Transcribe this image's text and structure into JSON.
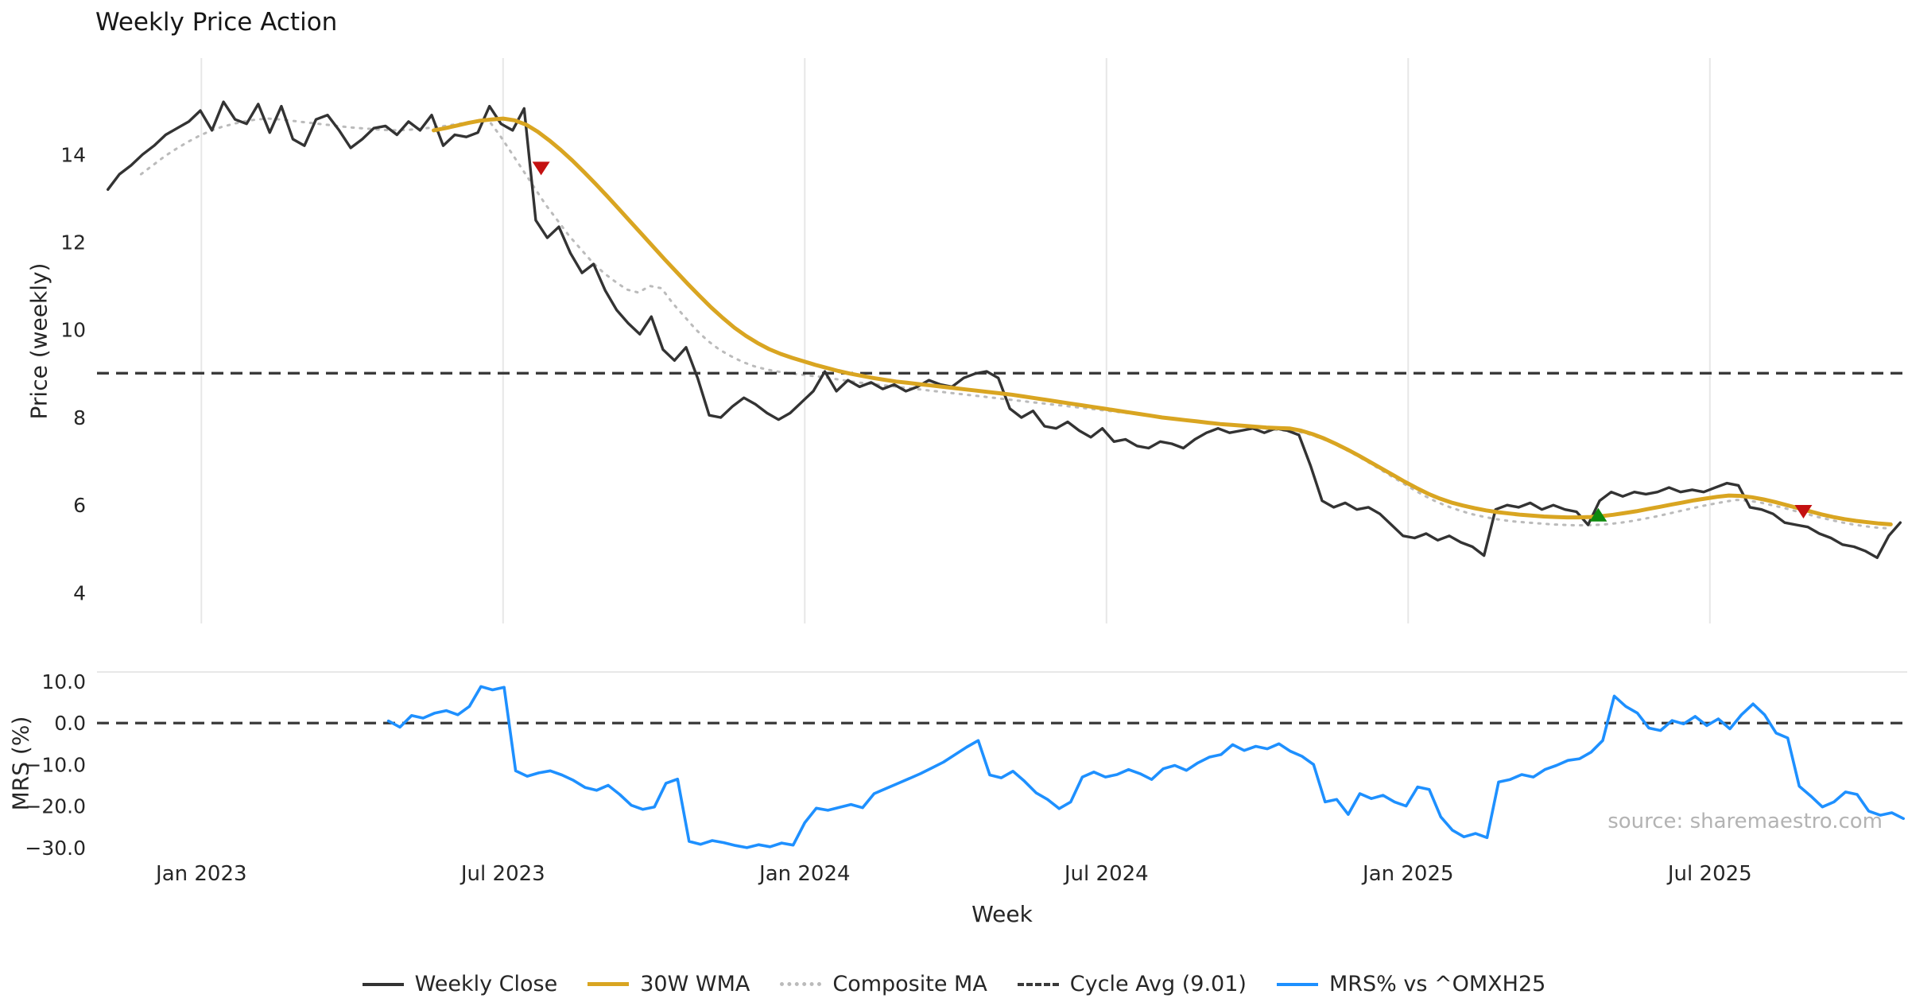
{
  "chart_data": {
    "type": "line",
    "title": "Weekly Price Action",
    "xlabel": "Week",
    "source": "source: sharemaestro.com",
    "x_axis": {
      "lim": [
        2022.827,
        2025.827
      ],
      "ticks": [
        {
          "v": 2023.0,
          "label": "Jan 2023"
        },
        {
          "v": 2023.5,
          "label": "Jul 2023"
        },
        {
          "v": 2024.0,
          "label": "Jan 2024"
        },
        {
          "v": 2024.5,
          "label": "Jul 2024"
        },
        {
          "v": 2025.0,
          "label": "Jan 2025"
        },
        {
          "v": 2025.5,
          "label": "Jul 2025"
        }
      ]
    },
    "panels": [
      {
        "id": "price",
        "ylabel": "Price (weekly)",
        "ylim": [
          3.3,
          16.2
        ],
        "yticks": [
          {
            "v": 4,
            "label": "4"
          },
          {
            "v": 6,
            "label": "6"
          },
          {
            "v": 8,
            "label": "8"
          },
          {
            "v": 10,
            "label": "10"
          },
          {
            "v": 12,
            "label": "12"
          },
          {
            "v": 14,
            "label": "14"
          }
        ],
        "grid_x": true
      },
      {
        "id": "mrs",
        "ylabel": "MRS (%)",
        "ylim": [
          -32.9,
          12.3
        ],
        "yticks": [
          {
            "v": 10,
            "label": "10.0"
          },
          {
            "v": 0,
            "label": "0.0"
          },
          {
            "v": -10,
            "label": "−10.0"
          },
          {
            "v": -20,
            "label": "−20.0"
          },
          {
            "v": -30,
            "label": "−30.0"
          }
        ],
        "grid_x": false
      }
    ],
    "series": [
      {
        "name": "Composite MA",
        "panel": "price",
        "color": "#bbbbbb",
        "width": 3,
        "dash": "2.5 8",
        "x_start": 2022.9,
        "x_step": 0.019165,
        "values": [
          13.55,
          13.75,
          13.95,
          14.12,
          14.28,
          14.42,
          14.54,
          14.63,
          14.7,
          14.76,
          14.8,
          14.82,
          14.8,
          14.77,
          14.74,
          14.71,
          14.68,
          14.65,
          14.62,
          14.6,
          14.58,
          14.56,
          14.55,
          14.56,
          14.58,
          14.61,
          14.64,
          14.68,
          14.72,
          14.76,
          14.8,
          14.45,
          14.05,
          13.65,
          13.25,
          12.85,
          12.5,
          12.15,
          11.85,
          11.55,
          11.3,
          11.1,
          10.92,
          10.85,
          11.0,
          10.95,
          10.6,
          10.3,
          10.0,
          9.75,
          9.55,
          9.4,
          9.27,
          9.17,
          9.1,
          9.05,
          9.01,
          8.98,
          8.95,
          8.92,
          8.88,
          8.84,
          8.8,
          8.77,
          8.74,
          8.71,
          8.68,
          8.65,
          8.62,
          8.59,
          8.56,
          8.53,
          8.5,
          8.47,
          8.44,
          8.41,
          8.38,
          8.35,
          8.32,
          8.29,
          8.26,
          8.23,
          8.2,
          8.17,
          8.14,
          8.11,
          8.08,
          8.05,
          8.02,
          7.99,
          7.96,
          7.93,
          7.9,
          7.87,
          7.84,
          7.81,
          7.78,
          7.75,
          7.72,
          7.7,
          7.68,
          7.62,
          7.53,
          7.42,
          7.29,
          7.15,
          7.0,
          6.84,
          6.68,
          6.52,
          6.36,
          6.21,
          6.08,
          5.97,
          5.88,
          5.8,
          5.74,
          5.69,
          5.65,
          5.62,
          5.6,
          5.58,
          5.56,
          5.55,
          5.54,
          5.54,
          5.55,
          5.57,
          5.6,
          5.64,
          5.69,
          5.74,
          5.8,
          5.86,
          5.92,
          5.98,
          6.03,
          6.08,
          6.12,
          6.1,
          6.06,
          6.0,
          5.94,
          5.87,
          5.8,
          5.73,
          5.67,
          5.61,
          5.56,
          5.52,
          5.49,
          5.47
        ]
      },
      {
        "name": "Cycle Avg (9.01)",
        "panel": "price",
        "color": "#3a3a3a",
        "width": 3.4,
        "dash": "15 9",
        "hline": 9.01
      },
      {
        "name": "Weekly Close",
        "panel": "price",
        "color": "#333333",
        "width": 3.4,
        "dash": null,
        "x_start": 2022.845,
        "x_step": 0.019165,
        "values": [
          13.2,
          13.55,
          13.75,
          14.0,
          14.2,
          14.45,
          14.6,
          14.75,
          15.0,
          14.55,
          15.2,
          14.8,
          14.7,
          15.15,
          14.5,
          15.1,
          14.35,
          14.2,
          14.8,
          14.9,
          14.55,
          14.15,
          14.35,
          14.6,
          14.65,
          14.45,
          14.75,
          14.55,
          14.9,
          14.2,
          14.45,
          14.4,
          14.5,
          15.1,
          14.7,
          14.55,
          15.05,
          12.5,
          12.1,
          12.35,
          11.75,
          11.3,
          11.5,
          10.9,
          10.45,
          10.15,
          9.9,
          10.3,
          9.55,
          9.3,
          9.6,
          8.9,
          8.05,
          8.0,
          8.25,
          8.45,
          8.3,
          8.1,
          7.95,
          8.1,
          8.35,
          8.6,
          9.05,
          8.6,
          8.85,
          8.7,
          8.8,
          8.65,
          8.75,
          8.6,
          8.7,
          8.85,
          8.75,
          8.7,
          8.9,
          9.0,
          9.05,
          8.9,
          8.2,
          8.0,
          8.15,
          7.8,
          7.75,
          7.9,
          7.7,
          7.55,
          7.75,
          7.45,
          7.5,
          7.35,
          7.3,
          7.45,
          7.4,
          7.3,
          7.5,
          7.65,
          7.75,
          7.65,
          7.7,
          7.75,
          7.65,
          7.75,
          7.7,
          7.6,
          6.9,
          6.1,
          5.95,
          6.05,
          5.9,
          5.95,
          5.8,
          5.55,
          5.3,
          5.25,
          5.35,
          5.2,
          5.3,
          5.15,
          5.05,
          4.85,
          5.9,
          6.0,
          5.95,
          6.05,
          5.9,
          6.0,
          5.9,
          5.85,
          5.55,
          6.1,
          6.3,
          6.2,
          6.3,
          6.25,
          6.3,
          6.4,
          6.3,
          6.35,
          6.3,
          6.4,
          6.5,
          6.45,
          5.95,
          5.9,
          5.8,
          5.6,
          5.55,
          5.5,
          5.35,
          5.25,
          5.1,
          5.05,
          4.95,
          4.8,
          5.3,
          5.6
        ]
      },
      {
        "name": "30W WMA",
        "panel": "price",
        "color": "#d9a521",
        "width": 5,
        "dash": null,
        "x_start": 2023.385,
        "x_step": 0.019165,
        "values": [
          14.55,
          14.6,
          14.66,
          14.72,
          14.77,
          14.8,
          14.82,
          14.78,
          14.68,
          14.52,
          14.32,
          14.1,
          13.86,
          13.6,
          13.33,
          13.05,
          12.76,
          12.47,
          12.18,
          11.89,
          11.6,
          11.32,
          11.04,
          10.77,
          10.51,
          10.27,
          10.05,
          9.86,
          9.7,
          9.56,
          9.45,
          9.36,
          9.28,
          9.2,
          9.13,
          9.06,
          9.0,
          8.95,
          8.9,
          8.86,
          8.82,
          8.79,
          8.76,
          8.73,
          8.7,
          8.67,
          8.64,
          8.61,
          8.58,
          8.55,
          8.52,
          8.48,
          8.44,
          8.4,
          8.36,
          8.32,
          8.28,
          8.24,
          8.2,
          8.16,
          8.12,
          8.08,
          8.04,
          8.0,
          7.97,
          7.94,
          7.91,
          7.88,
          7.85,
          7.83,
          7.81,
          7.79,
          7.77,
          7.76,
          7.75,
          7.7,
          7.62,
          7.52,
          7.4,
          7.27,
          7.13,
          6.98,
          6.83,
          6.68,
          6.53,
          6.39,
          6.26,
          6.15,
          6.06,
          5.99,
          5.93,
          5.88,
          5.84,
          5.81,
          5.78,
          5.76,
          5.74,
          5.73,
          5.72,
          5.72,
          5.73,
          5.75,
          5.78,
          5.82,
          5.86,
          5.91,
          5.96,
          6.01,
          6.06,
          6.11,
          6.15,
          6.19,
          6.22,
          6.21,
          6.18,
          6.13,
          6.07,
          6.0,
          5.93,
          5.86,
          5.79,
          5.73,
          5.68,
          5.64,
          5.61,
          5.58,
          5.56
        ]
      },
      {
        "name": "zero-line",
        "panel": "mrs",
        "color": "#3a3a3a",
        "width": 3.2,
        "dash": "15 9",
        "hline": 0,
        "legend": false
      },
      {
        "name": "MRS% vs ^OMXH25",
        "panel": "mrs",
        "color": "#1E90FF",
        "width": 3.6,
        "dash": null,
        "x_start": 2023.31,
        "x_step": 0.019165,
        "values": [
          0.5,
          -1.0,
          1.8,
          1.2,
          2.4,
          3.0,
          2.0,
          4.0,
          8.8,
          8.0,
          8.6,
          -11.5,
          -12.8,
          -12.0,
          -11.5,
          -12.5,
          -13.8,
          -15.5,
          -16.2,
          -15.0,
          -17.2,
          -19.8,
          -20.8,
          -20.2,
          -14.5,
          -13.5,
          -28.5,
          -29.2,
          -28.3,
          -28.8,
          -29.5,
          -30.0,
          -29.3,
          -29.8,
          -28.9,
          -29.4,
          -24.0,
          -20.5,
          -21.0,
          -20.3,
          -19.6,
          -20.4,
          -17.0,
          -15.8,
          -14.6,
          -13.4,
          -12.2,
          -10.8,
          -9.4,
          -7.6,
          -5.8,
          -4.2,
          -12.5,
          -13.2,
          -11.6,
          -14.0,
          -16.8,
          -18.4,
          -20.6,
          -19.0,
          -13.0,
          -11.8,
          -13.0,
          -12.4,
          -11.2,
          -12.2,
          -13.6,
          -11.0,
          -10.2,
          -11.4,
          -9.6,
          -8.2,
          -7.6,
          -5.2,
          -6.6,
          -5.6,
          -6.2,
          -5.0,
          -6.8,
          -8.0,
          -10.0,
          -19.0,
          -18.4,
          -22.0,
          -17.0,
          -18.2,
          -17.4,
          -19.0,
          -20.0,
          -15.4,
          -16.0,
          -22.6,
          -25.8,
          -27.4,
          -26.6,
          -27.6,
          -14.2,
          -13.6,
          -12.4,
          -13.0,
          -11.2,
          -10.2,
          -9.0,
          -8.6,
          -7.0,
          -4.2,
          6.5,
          4.0,
          2.4,
          -1.2,
          -1.8,
          0.6,
          -0.2,
          1.6,
          -0.6,
          1.0,
          -1.4,
          2.0,
          4.6,
          2.0,
          -2.4,
          -3.6,
          -15.2,
          -17.6,
          -20.2,
          -19.0,
          -16.6,
          -17.2,
          -21.2,
          -22.2,
          -21.6,
          -23.0
        ]
      }
    ],
    "markers": [
      {
        "shape": "triangle-down",
        "color": "#c41111",
        "panel": "price",
        "x": 2023.563,
        "y": 13.68
      },
      {
        "shape": "triangle-up",
        "color": "#0e8a0e",
        "panel": "price",
        "x": 2025.315,
        "y": 5.78
      },
      {
        "shape": "triangle-down",
        "color": "#c41111",
        "panel": "price",
        "x": 2025.655,
        "y": 5.85
      }
    ],
    "legend": [
      {
        "label": "Weekly Close",
        "color": "#333333",
        "style": "solid",
        "thickness": 4
      },
      {
        "label": "30W WMA",
        "color": "#d9a521",
        "style": "solid",
        "thickness": 5
      },
      {
        "label": "Composite MA",
        "color": "#bbbbbb",
        "style": "dotted",
        "thickness": 5
      },
      {
        "label": "Cycle Avg (9.01)",
        "color": "#3a3a3a",
        "style": "dashed",
        "thickness": 4
      },
      {
        "label": "MRS% vs ^OMXH25",
        "color": "#1E90FF",
        "style": "solid",
        "thickness": 4
      }
    ]
  }
}
